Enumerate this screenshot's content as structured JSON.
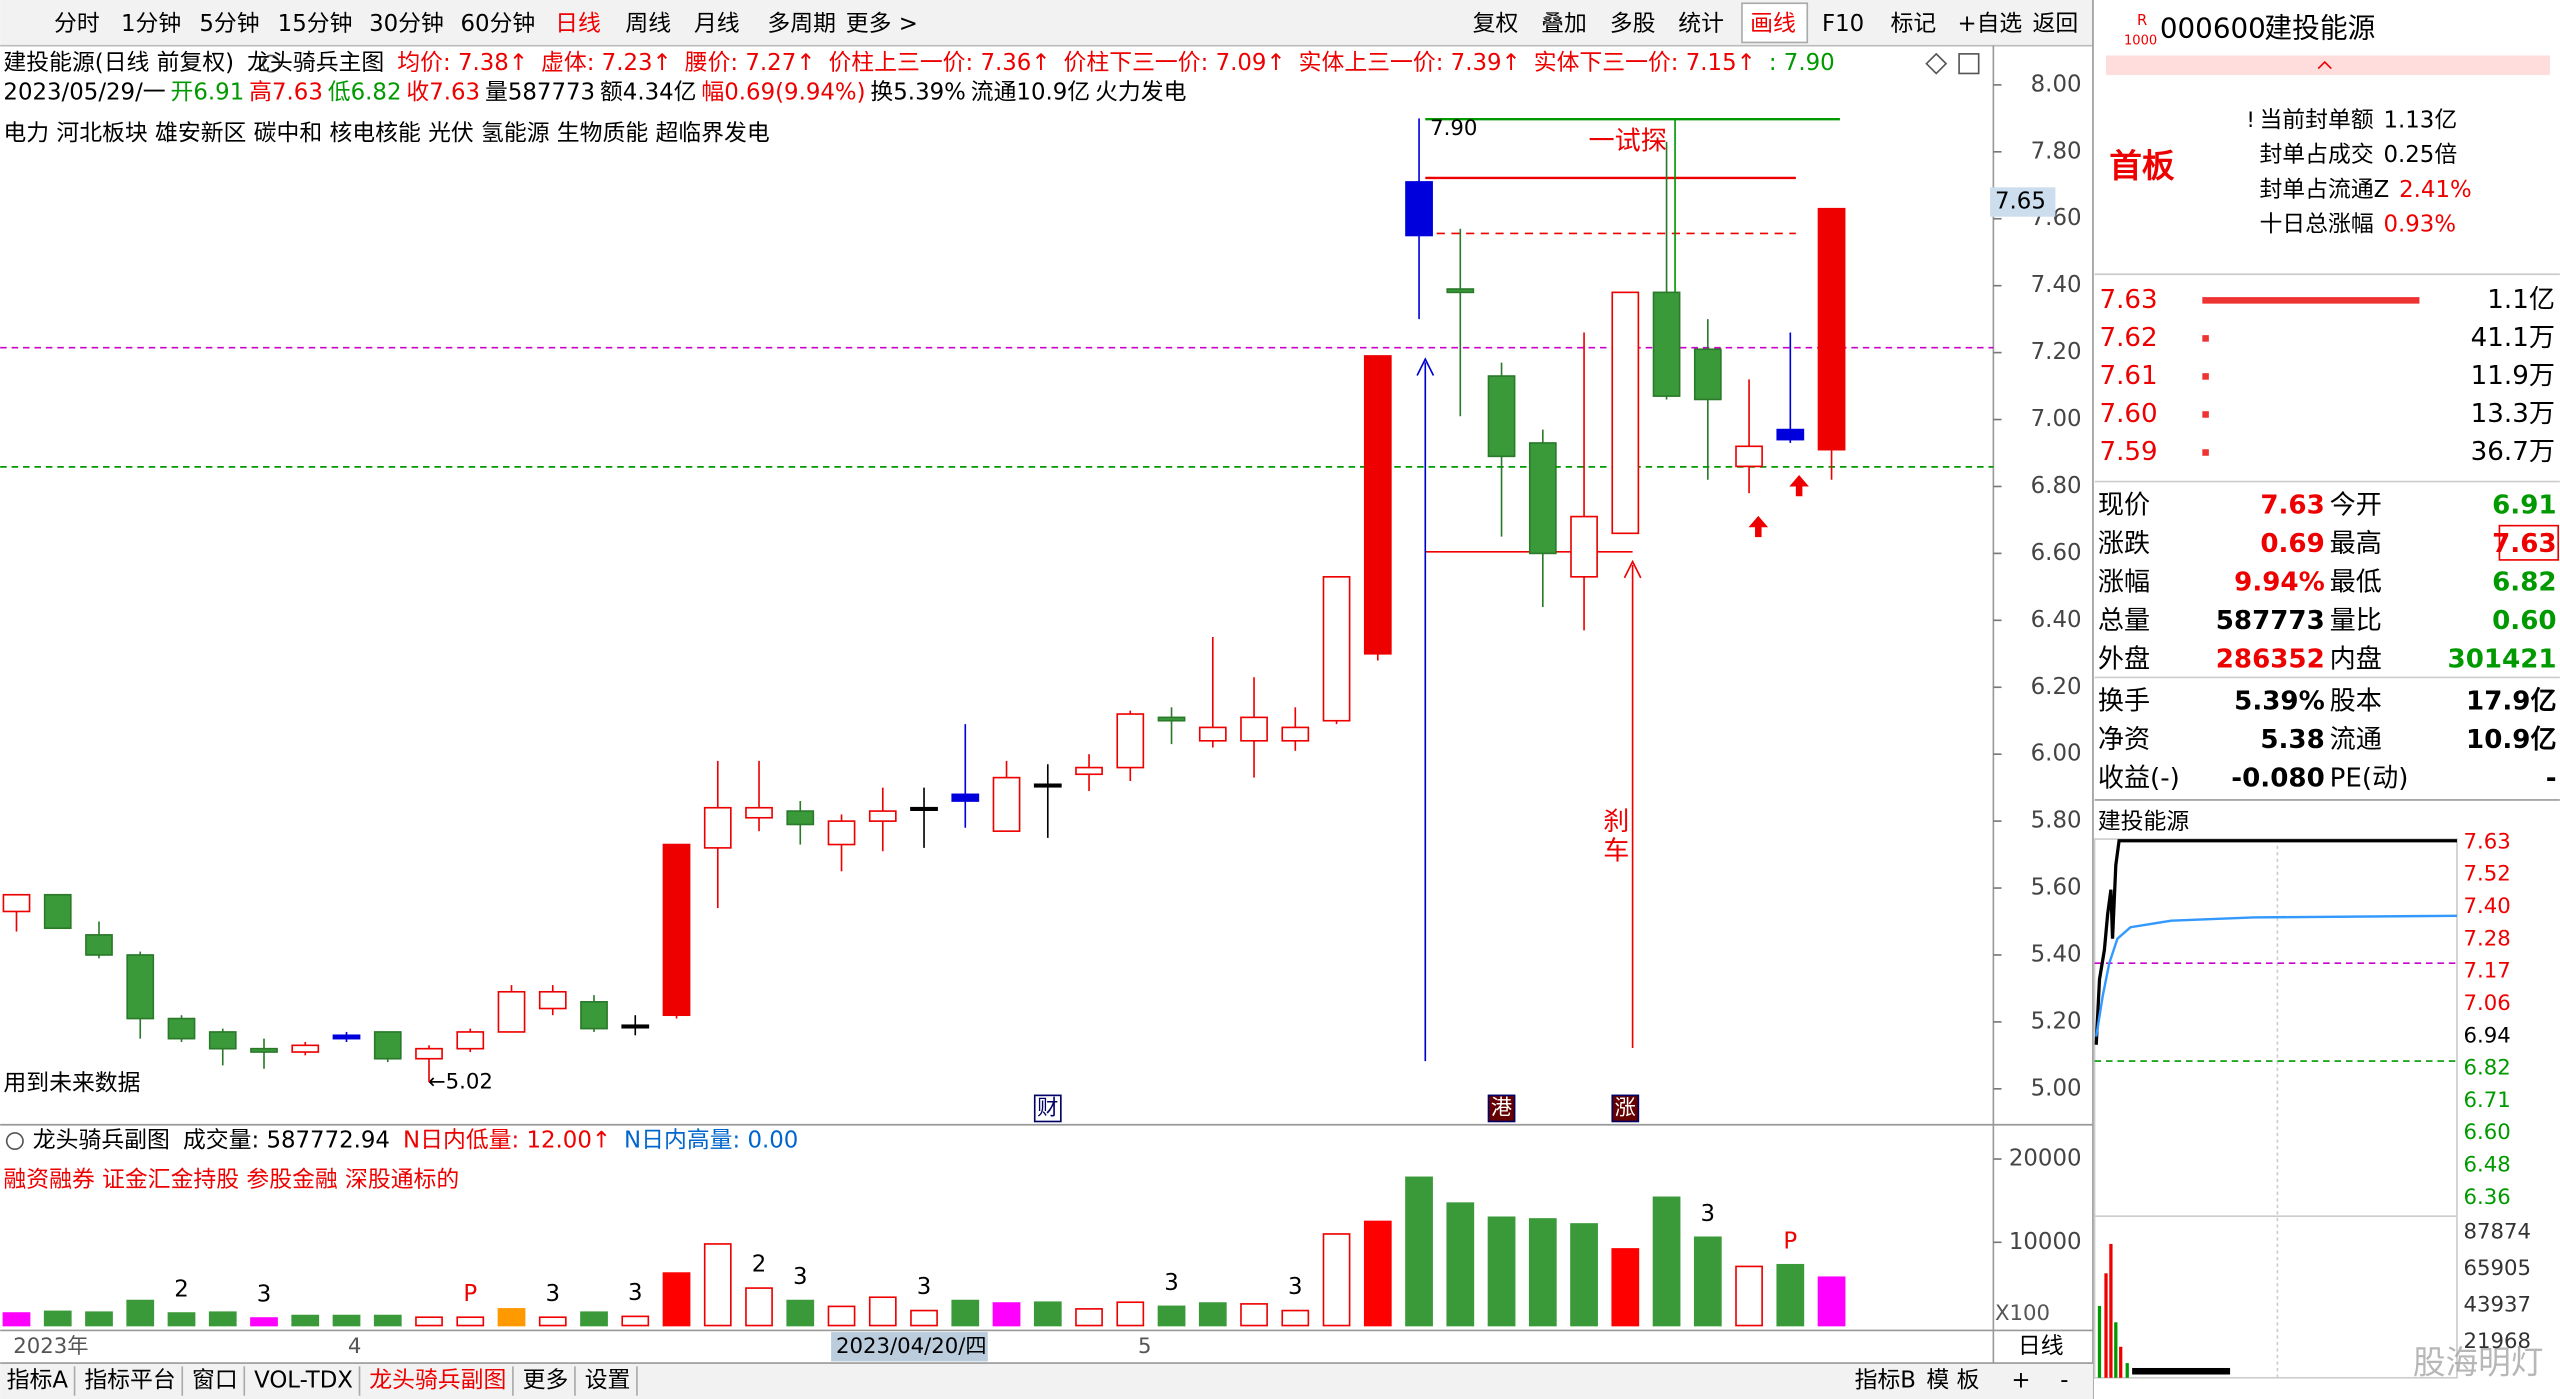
{
  "toolbar": {
    "left": [
      {
        "text": "分时"
      },
      {
        "text": "1分钟"
      },
      {
        "text": "5分钟"
      },
      {
        "text": "15分钟"
      },
      {
        "text": "30分钟"
      },
      {
        "text": "60分钟"
      },
      {
        "text": "日线",
        "active": true
      },
      {
        "text": "周线"
      },
      {
        "text": "月线"
      },
      {
        "text": "多周期"
      },
      {
        "text": "更多 >"
      }
    ],
    "right": [
      {
        "text": "复权"
      },
      {
        "text": "叠加"
      },
      {
        "text": "多股"
      },
      {
        "text": "统计"
      },
      {
        "text": "画线",
        "active": true
      },
      {
        "text": "F10"
      },
      {
        "text": "标记"
      },
      {
        "text": "+自选"
      },
      {
        "text": "返回"
      }
    ]
  },
  "main": {
    "line1": [
      {
        "text": "建投能源(日线 前复权)",
        "color": "#000"
      },
      {
        "text": "龙头骑兵主图",
        "color": "#000"
      },
      {
        "text": "均价: 7.38↑",
        "color": "#e00"
      },
      {
        "text": "虚体: 7.23↑",
        "color": "#e00"
      },
      {
        "text": "腰价: 7.27↑",
        "color": "#e00"
      },
      {
        "text": "价柱上三一价: 7.36↑",
        "color": "#e00"
      },
      {
        "text": "价柱下三一价: 7.09↑",
        "color": "#e00"
      },
      {
        "text": "实体上三一价: 7.39↑",
        "color": "#e00"
      },
      {
        "text": "实体下三一价: 7.15↑",
        "color": "#e00"
      },
      {
        "text": ": 7.90",
        "color": "#090"
      }
    ],
    "line2": [
      {
        "text": "2023/05/29/一",
        "color": "#000"
      },
      {
        "text": "开6.91",
        "color": "#090"
      },
      {
        "text": "高7.63",
        "color": "#e00"
      },
      {
        "text": "低6.82",
        "color": "#090"
      },
      {
        "text": "收7.63",
        "color": "#e00"
      },
      {
        "text": "量587773",
        "color": "#000"
      },
      {
        "text": "额4.34亿",
        "color": "#000"
      },
      {
        "text": "幅0.69(9.94%)",
        "color": "#e00"
      },
      {
        "text": "换5.39%",
        "color": "#000"
      },
      {
        "text": "流通10.9亿",
        "color": "#000"
      },
      {
        "text": "火力发电",
        "color": "#000"
      }
    ],
    "concepts": "电力 河北板块 雄安新区 碳中和 核电核能 光伏 氢能源 生物质能 超临界发电",
    "price_ticks": [
      {
        "value": 8,
        "label": "8.00"
      },
      {
        "value": 7.8,
        "label": "7.80"
      },
      {
        "value": 7.6,
        "label": "7.60"
      },
      {
        "value": 7.4,
        "label": "7.40"
      },
      {
        "value": 7.2,
        "label": "7.20"
      },
      {
        "value": 7,
        "label": "7.00"
      },
      {
        "value": 6.8,
        "label": "6.80"
      },
      {
        "value": 6.6,
        "label": "6.60"
      },
      {
        "value": 6.4,
        "label": "6.40"
      },
      {
        "value": 6.2,
        "label": "6.20"
      },
      {
        "value": 6,
        "label": "6.00"
      },
      {
        "value": 5.8,
        "label": "5.80"
      },
      {
        "value": 5.6,
        "label": "5.60"
      },
      {
        "value": 5.4,
        "label": "5.40"
      },
      {
        "value": 5.2,
        "label": "5.20"
      },
      {
        "value": 5,
        "label": "5.00"
      }
    ],
    "cursor_price": {
      "value": 7.65,
      "label": "7.65"
    },
    "annotations": {
      "high": "7.90",
      "test": "一试探",
      "brake": [
        "刹",
        "车"
      ],
      "low": "←5.02",
      "future": "用到未来数据"
    },
    "candles": [
      {
        "open": 5.53,
        "high": 5.58,
        "low": 5.47,
        "close": 5.58,
        "style": "hollow"
      },
      {
        "open": 5.58,
        "high": 5.58,
        "low": 5.48,
        "close": 5.48,
        "style": "green"
      },
      {
        "open": 5.46,
        "high": 5.5,
        "low": 5.39,
        "close": 5.4,
        "style": "green"
      },
      {
        "open": 5.4,
        "high": 5.41,
        "low": 5.15,
        "close": 5.21,
        "style": "green"
      },
      {
        "open": 5.21,
        "high": 5.22,
        "low": 5.14,
        "close": 5.15,
        "style": "green"
      },
      {
        "open": 5.17,
        "high": 5.18,
        "low": 5.07,
        "close": 5.12,
        "style": "green"
      },
      {
        "open": 5.12,
        "high": 5.15,
        "low": 5.06,
        "close": 5.11,
        "style": "green"
      },
      {
        "open": 5.11,
        "high": 5.14,
        "low": 5.1,
        "close": 5.13,
        "style": "hollow"
      },
      {
        "open": 5.16,
        "high": 5.17,
        "low": 5.14,
        "close": 5.15,
        "style": "blue"
      },
      {
        "open": 5.17,
        "high": 5.17,
        "low": 5.08,
        "close": 5.09,
        "style": "green"
      },
      {
        "open": 5.09,
        "high": 5.13,
        "low": 5.02,
        "close": 5.12,
        "style": "hollow"
      },
      {
        "open": 5.12,
        "high": 5.18,
        "low": 5.11,
        "close": 5.17,
        "style": "hollow"
      },
      {
        "open": 5.17,
        "high": 5.31,
        "low": 5.17,
        "close": 5.29,
        "style": "hollow"
      },
      {
        "open": 5.24,
        "high": 5.31,
        "low": 5.22,
        "close": 5.29,
        "style": "hollow"
      },
      {
        "open": 5.26,
        "high": 5.28,
        "low": 5.17,
        "close": 5.18,
        "style": "green"
      },
      {
        "open": 5.19,
        "high": 5.22,
        "low": 5.16,
        "close": 5.19,
        "style": "cross"
      },
      {
        "open": 5.22,
        "high": 5.73,
        "low": 5.21,
        "close": 5.73,
        "style": "solid"
      },
      {
        "open": 5.72,
        "high": 5.98,
        "low": 5.54,
        "close": 5.84,
        "style": "hollow"
      },
      {
        "open": 5.81,
        "high": 5.98,
        "low": 5.77,
        "close": 5.84,
        "style": "hollow"
      },
      {
        "open": 5.83,
        "high": 5.86,
        "low": 5.73,
        "close": 5.79,
        "style": "green"
      },
      {
        "open": 5.73,
        "high": 5.82,
        "low": 5.65,
        "close": 5.8,
        "style": "hollow"
      },
      {
        "open": 5.8,
        "high": 5.9,
        "low": 5.71,
        "close": 5.83,
        "style": "hollow"
      },
      {
        "open": 5.84,
        "high": 5.9,
        "low": 5.72,
        "close": 5.84,
        "style": "cross"
      },
      {
        "open": 5.88,
        "high": 6.09,
        "low": 5.78,
        "close": 5.86,
        "style": "blue"
      },
      {
        "open": 5.77,
        "high": 5.98,
        "low": 5.77,
        "close": 5.93,
        "style": "hollow"
      },
      {
        "open": 5.91,
        "high": 5.97,
        "low": 5.75,
        "close": 5.91,
        "style": "cross",
        "event": "财"
      },
      {
        "open": 5.94,
        "high": 6,
        "low": 5.89,
        "close": 5.96,
        "style": "hollow"
      },
      {
        "open": 5.96,
        "high": 6.13,
        "low": 5.92,
        "close": 6.12,
        "style": "hollow"
      },
      {
        "open": 6.11,
        "high": 6.14,
        "low": 6.03,
        "close": 6.1,
        "style": "green"
      },
      {
        "open": 6.04,
        "high": 6.35,
        "low": 6.02,
        "close": 6.08,
        "style": "hollow"
      },
      {
        "open": 6.04,
        "high": 6.23,
        "low": 5.93,
        "close": 6.11,
        "style": "hollow"
      },
      {
        "open": 6.04,
        "high": 6.14,
        "low": 6.01,
        "close": 6.08,
        "style": "hollow"
      },
      {
        "open": 6.1,
        "high": 6.53,
        "low": 6.09,
        "close": 6.53,
        "style": "hollow"
      },
      {
        "open": 6.3,
        "high": 7.19,
        "low": 6.28,
        "close": 7.19,
        "style": "solid"
      },
      {
        "open": 7.55,
        "high": 7.9,
        "low": 7.3,
        "close": 7.71,
        "style": "blue"
      },
      {
        "open": 7.39,
        "high": 7.57,
        "low": 7.01,
        "close": 7.38,
        "style": "green"
      },
      {
        "open": 7.13,
        "high": 7.17,
        "low": 6.65,
        "close": 6.89,
        "style": "green",
        "event": "港"
      },
      {
        "open": 6.93,
        "high": 6.97,
        "low": 6.44,
        "close": 6.6,
        "style": "green"
      },
      {
        "open": 6.53,
        "high": 7.26,
        "low": 6.37,
        "close": 6.71,
        "style": "hollow"
      },
      {
        "open": 6.66,
        "high": 7.38,
        "low": 6.66,
        "close": 7.38,
        "style": "hollow",
        "event": "涨"
      },
      {
        "open": 7.38,
        "high": 7.83,
        "low": 7.06,
        "close": 7.07,
        "style": "green"
      },
      {
        "open": 7.21,
        "high": 7.3,
        "low": 6.82,
        "close": 7.06,
        "style": "green"
      },
      {
        "open": 6.86,
        "high": 7.12,
        "low": 6.78,
        "close": 6.92,
        "style": "hollow"
      },
      {
        "open": 6.97,
        "high": 7.26,
        "low": 6.93,
        "close": 6.94,
        "style": "blue"
      },
      {
        "open": 6.91,
        "high": 7.63,
        "low": 6.82,
        "close": 7.63,
        "style": "solid"
      }
    ]
  },
  "sub": {
    "line1": [
      {
        "text": "龙头骑兵副图",
        "color": "#000"
      },
      {
        "text": "成交量: 587772.94",
        "color": "#000"
      },
      {
        "text": "N日内低量: 12.00↑",
        "color": "#e00"
      },
      {
        "text": "N日内高量: 0.00",
        "color": "#06c"
      }
    ],
    "line2": "融资融券 证金汇金持股 参股金融 深股通标的",
    "ticks": [
      20000,
      10000
    ],
    "unit": "X100",
    "volumes": [
      {
        "value": 1500,
        "color": "magenta"
      },
      {
        "value": 1700,
        "color": "green"
      },
      {
        "value": 1600,
        "color": "green"
      },
      {
        "value": 3000,
        "color": "green"
      },
      {
        "value": 1500,
        "color": "green",
        "flag": "2"
      },
      {
        "value": 1600,
        "color": "green"
      },
      {
        "value": 900,
        "color": "magenta",
        "flag": "3"
      },
      {
        "value": 1200,
        "color": "green"
      },
      {
        "value": 1200,
        "color": "green"
      },
      {
        "value": 1200,
        "color": "green"
      },
      {
        "value": 1000,
        "color": "hollow"
      },
      {
        "value": 1000,
        "color": "hollow",
        "flag": "P"
      },
      {
        "value": 2000,
        "color": "orange"
      },
      {
        "value": 1000,
        "color": "hollow",
        "flag": "3"
      },
      {
        "value": 1600,
        "color": "green"
      },
      {
        "value": 1100,
        "color": "hollow",
        "flag": "3"
      },
      {
        "value": 6300,
        "color": "red"
      },
      {
        "value": 9800,
        "color": "hollow"
      },
      {
        "value": 4500,
        "color": "hollow",
        "flag": "2"
      },
      {
        "value": 3000,
        "color": "green",
        "flag": "3"
      },
      {
        "value": 2300,
        "color": "hollow"
      },
      {
        "value": 3400,
        "color": "hollow"
      },
      {
        "value": 1800,
        "color": "hollow",
        "flag": "3"
      },
      {
        "value": 3000,
        "color": "green"
      },
      {
        "value": 2700,
        "color": "magenta"
      },
      {
        "value": 2800,
        "color": "green"
      },
      {
        "value": 2000,
        "color": "hollow"
      },
      {
        "value": 2800,
        "color": "hollow"
      },
      {
        "value": 2300,
        "color": "green",
        "flag": "3"
      },
      {
        "value": 2700,
        "color": "green"
      },
      {
        "value": 2600,
        "color": "hollow"
      },
      {
        "value": 1800,
        "color": "hollow",
        "flag": "3"
      },
      {
        "value": 11000,
        "color": "hollow"
      },
      {
        "value": 12500,
        "color": "red"
      },
      {
        "value": 17800,
        "color": "green"
      },
      {
        "value": 14700,
        "color": "green"
      },
      {
        "value": 13000,
        "color": "green"
      },
      {
        "value": 12800,
        "color": "green"
      },
      {
        "value": 12200,
        "color": "green"
      },
      {
        "value": 9200,
        "color": "red"
      },
      {
        "value": 15400,
        "color": "green"
      },
      {
        "value": 10600,
        "color": "green",
        "flag": "3"
      },
      {
        "value": 7100,
        "color": "hollow"
      },
      {
        "value": 7300,
        "color": "green",
        "flag": "P"
      },
      {
        "value": 5800,
        "color": "magenta"
      }
    ]
  },
  "date_axis": {
    "year": "2023年",
    "april": "4",
    "cursor": "2023/04/20/四",
    "may": "5",
    "period": "日线"
  },
  "bottom_tabs": {
    "left": [
      {
        "text": "指标A"
      },
      {
        "text": "指标平台"
      },
      {
        "text": "窗口"
      },
      {
        "text": "VOL-TDX"
      },
      {
        "text": "龙头骑兵副图",
        "active": true
      },
      {
        "text": "更多"
      },
      {
        "text": "设置"
      }
    ],
    "right": [
      {
        "text": "指标B"
      },
      {
        "text": "模 板"
      },
      {
        "text": "+"
      },
      {
        "text": "-"
      }
    ]
  },
  "quote": {
    "logo_top": "R",
    "logo_bottom": "1000",
    "code": "000600",
    "name": "建投能源",
    "tag": "首板",
    "seal": [
      {
        "label": "当前封单额",
        "value": "1.13亿",
        "color": "#000"
      },
      {
        "label": "封单占成交",
        "value": "0.25倍",
        "color": "#000"
      },
      {
        "label": "封单占流通Z",
        "value": "2.41%",
        "color": "#e00"
      },
      {
        "label": "十日总涨幅",
        "value": "0.93%",
        "color": "#e00"
      }
    ],
    "book": [
      {
        "price": "7.63",
        "qty": "1.1亿"
      },
      {
        "price": "7.62",
        "qty": "41.1万"
      },
      {
        "price": "7.61",
        "qty": "11.9万"
      },
      {
        "price": "7.60",
        "qty": "13.3万"
      },
      {
        "price": "7.59",
        "qty": "36.7万"
      }
    ],
    "rows": [
      [
        {
          "label": "现价",
          "value": "7.63",
          "color": "#e00"
        },
        {
          "label": "今开",
          "value": "6.91",
          "color": "#090"
        }
      ],
      [
        {
          "label": "涨跌",
          "value": "0.69",
          "color": "#e00"
        },
        {
          "label": "最高",
          "value": "7.63",
          "color": "#e00"
        }
      ],
      [
        {
          "label": "涨幅",
          "value": "9.94%",
          "color": "#e00"
        },
        {
          "label": "最低",
          "value": "6.82",
          "color": "#090"
        }
      ],
      [
        {
          "label": "总量",
          "value": "587773",
          "color": "#000"
        },
        {
          "label": "量比",
          "value": "0.60",
          "color": "#090"
        }
      ],
      [
        {
          "label": "外盘",
          "value": "286352",
          "color": "#e00"
        },
        {
          "label": "内盘",
          "value": "301421",
          "color": "#090"
        }
      ],
      [
        {
          "label": "换手",
          "value": "5.39%",
          "color": "#000"
        },
        {
          "label": "股本",
          "value": "17.9亿",
          "color": "#000"
        }
      ],
      [
        {
          "label": "净资",
          "value": "5.38",
          "color": "#000"
        },
        {
          "label": "流通",
          "value": "10.9亿",
          "color": "#000"
        }
      ],
      [
        {
          "label": "收益(-)",
          "value": "-0.080",
          "color": "#000"
        },
        {
          "label": "PE(动)",
          "value": "-",
          "color": "#000"
        }
      ]
    ],
    "mini_title": "建投能源",
    "mini_prices": [
      {
        "text": "7.63",
        "color": "#e00"
      },
      {
        "text": "7.52",
        "color": "#e00"
      },
      {
        "text": "7.40",
        "color": "#e00"
      },
      {
        "text": "7.28",
        "color": "#e00"
      },
      {
        "text": "7.17",
        "color": "#e00"
      },
      {
        "text": "7.06",
        "color": "#e00"
      },
      {
        "text": "6.94",
        "color": "#000"
      },
      {
        "text": "6.82",
        "color": "#090"
      },
      {
        "text": "6.71",
        "color": "#090"
      },
      {
        "text": "6.60",
        "color": "#090"
      },
      {
        "text": "6.48",
        "color": "#090"
      },
      {
        "text": "6.36",
        "color": "#090"
      }
    ],
    "mini_volumes": [
      "87874",
      "65905",
      "43937",
      "21968"
    ]
  },
  "watermark": "股海明灯"
}
